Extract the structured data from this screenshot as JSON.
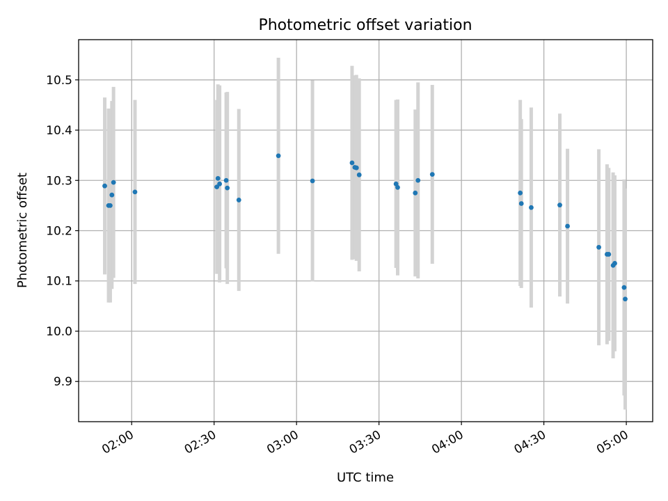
{
  "chart_data": {
    "type": "scatter",
    "title": "Photometric offset variation",
    "xlabel": "UTC time",
    "ylabel": "Photometric offset",
    "x_ticks": [
      "02:00",
      "02:30",
      "03:00",
      "03:30",
      "04:00",
      "04:30",
      "05:00"
    ],
    "x_tick_minutes": [
      120,
      150,
      180,
      210,
      240,
      270,
      300
    ],
    "xlim_minutes": [
      100.7,
      309.6
    ],
    "y_ticks": [
      "9.9",
      "10.0",
      "10.1",
      "10.2",
      "10.3",
      "10.4",
      "10.5"
    ],
    "y_tick_values": [
      9.9,
      10.0,
      10.1,
      10.2,
      10.3,
      10.4,
      10.5
    ],
    "ylim": [
      9.82,
      10.58
    ],
    "grid": true,
    "marker_color": "#1f77b4",
    "errorbar_color": "#d3d3d3",
    "points": [
      {
        "time": "01:50:12",
        "y": 10.289,
        "err": 0.176
      },
      {
        "time": "01:51:36",
        "y": 10.25,
        "err": 0.193
      },
      {
        "time": "01:52:12",
        "y": 10.25,
        "err": 0.193
      },
      {
        "time": "01:52:48",
        "y": 10.271,
        "err": 0.187
      },
      {
        "time": "01:53:24",
        "y": 10.296,
        "err": 0.19
      },
      {
        "time": "02:01:12",
        "y": 10.277,
        "err": 0.183
      },
      {
        "time": "02:31:00",
        "y": 10.287,
        "err": 0.173
      },
      {
        "time": "02:31:24",
        "y": 10.304,
        "err": 0.187
      },
      {
        "time": "02:32:00",
        "y": 10.293,
        "err": 0.196
      },
      {
        "time": "02:34:24",
        "y": 10.3,
        "err": 0.175
      },
      {
        "time": "02:34:48",
        "y": 10.285,
        "err": 0.191
      },
      {
        "time": "02:39:00",
        "y": 10.261,
        "err": 0.181
      },
      {
        "time": "02:53:24",
        "y": 10.349,
        "err": 0.195
      },
      {
        "time": "03:05:48",
        "y": 10.299,
        "err": 0.2
      },
      {
        "time": "03:20:12",
        "y": 10.335,
        "err": 0.193
      },
      {
        "time": "03:21:12",
        "y": 10.326,
        "err": 0.183
      },
      {
        "time": "03:21:48",
        "y": 10.325,
        "err": 0.185
      },
      {
        "time": "03:22:48",
        "y": 10.311,
        "err": 0.192
      },
      {
        "time": "03:36:12",
        "y": 10.293,
        "err": 0.167
      },
      {
        "time": "03:36:48",
        "y": 10.286,
        "err": 0.175
      },
      {
        "time": "03:43:12",
        "y": 10.275,
        "err": 0.166
      },
      {
        "time": "03:44:12",
        "y": 10.3,
        "err": 0.195
      },
      {
        "time": "03:49:24",
        "y": 10.312,
        "err": 0.178
      },
      {
        "time": "04:21:24",
        "y": 10.275,
        "err": 0.185
      },
      {
        "time": "04:21:48",
        "y": 10.254,
        "err": 0.168
      },
      {
        "time": "04:25:24",
        "y": 10.246,
        "err": 0.199
      },
      {
        "time": "04:35:48",
        "y": 10.251,
        "err": 0.182
      },
      {
        "time": "04:38:36",
        "y": 10.209,
        "err": 0.154
      },
      {
        "time": "04:50:00",
        "y": 10.167,
        "err": 0.195
      },
      {
        "time": "04:53:00",
        "y": 10.153,
        "err": 0.179
      },
      {
        "time": "04:53:36",
        "y": 10.153,
        "err": 0.172
      },
      {
        "time": "04:55:12",
        "y": 10.131,
        "err": 0.185
      },
      {
        "time": "04:55:48",
        "y": 10.135,
        "err": 0.175
      },
      {
        "time": "04:59:12",
        "y": 10.087,
        "err": 0.215
      },
      {
        "time": "04:59:36",
        "y": 10.064,
        "err": 0.22
      }
    ]
  }
}
